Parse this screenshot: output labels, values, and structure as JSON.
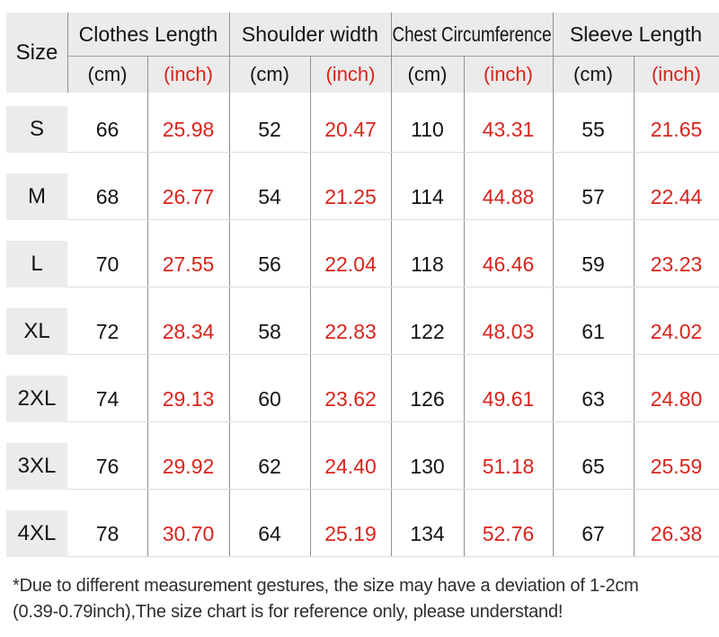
{
  "colors": {
    "accent_red": "#d9241c",
    "header_bg": "#ebebeb",
    "grid_dark": "#909090",
    "grid_light": "#dcdcdc"
  },
  "table": {
    "corner_label": "Size",
    "groups": [
      {
        "label": "Clothes Length"
      },
      {
        "label": "Shoulder width"
      },
      {
        "label": "Chest Circumference"
      },
      {
        "label": "Sleeve Length"
      }
    ],
    "units": {
      "cm": "(cm)",
      "inch": "(inch)"
    }
  },
  "chart_data": {
    "type": "table",
    "columns": [
      "Size",
      "Clothes Length (cm)",
      "Clothes Length (inch)",
      "Shoulder width (cm)",
      "Shoulder width (inch)",
      "Chest Circumference (cm)",
      "Chest Circumference (inch)",
      "Sleeve Length (cm)",
      "Sleeve Length (inch)"
    ],
    "rows": [
      {
        "size": "S",
        "cells": [
          "66",
          "25.98",
          "52",
          "20.47",
          "110",
          "43.31",
          "55",
          "21.65"
        ]
      },
      {
        "size": "M",
        "cells": [
          "68",
          "26.77",
          "54",
          "21.25",
          "114",
          "44.88",
          "57",
          "22.44"
        ]
      },
      {
        "size": "L",
        "cells": [
          "70",
          "27.55",
          "56",
          "22.04",
          "118",
          "46.46",
          "59",
          "23.23"
        ]
      },
      {
        "size": "XL",
        "cells": [
          "72",
          "28.34",
          "58",
          "22.83",
          "122",
          "48.03",
          "61",
          "24.02"
        ]
      },
      {
        "size": "2XL",
        "cells": [
          "74",
          "29.13",
          "60",
          "23.62",
          "126",
          "49.61",
          "63",
          "24.80"
        ]
      },
      {
        "size": "3XL",
        "cells": [
          "76",
          "29.92",
          "62",
          "24.40",
          "130",
          "51.18",
          "65",
          "25.59"
        ]
      },
      {
        "size": "4XL",
        "cells": [
          "78",
          "30.70",
          "64",
          "25.19",
          "134",
          "52.76",
          "67",
          "26.38"
        ]
      }
    ]
  },
  "footnote": {
    "line1": "*Due to different measurement gestures, the size may have a deviation of 1-2cm",
    "line2": "(0.39-0.79inch),The size chart is for reference only, please understand!"
  }
}
